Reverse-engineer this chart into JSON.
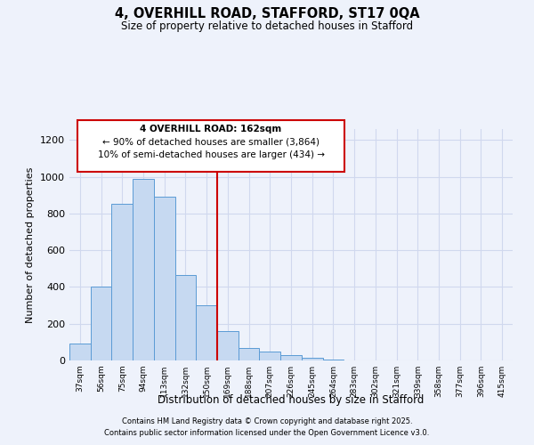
{
  "title": "4, OVERHILL ROAD, STAFFORD, ST17 0QA",
  "subtitle": "Size of property relative to detached houses in Stafford",
  "xlabel": "Distribution of detached houses by size in Stafford",
  "ylabel": "Number of detached properties",
  "bar_labels": [
    "37sqm",
    "56sqm",
    "75sqm",
    "94sqm",
    "113sqm",
    "132sqm",
    "150sqm",
    "169sqm",
    "188sqm",
    "207sqm",
    "226sqm",
    "245sqm",
    "264sqm",
    "283sqm",
    "302sqm",
    "321sqm",
    "339sqm",
    "358sqm",
    "377sqm",
    "396sqm",
    "415sqm"
  ],
  "bar_heights": [
    90,
    400,
    855,
    990,
    890,
    465,
    300,
    160,
    70,
    50,
    30,
    15,
    5,
    2,
    1,
    0,
    0,
    0,
    0,
    0,
    0
  ],
  "bar_color": "#c6d9f1",
  "bar_edge_color": "#5b9bd5",
  "vline_x": 7,
  "vline_color": "#cc0000",
  "ylim": [
    0,
    1260
  ],
  "yticks": [
    0,
    200,
    400,
    600,
    800,
    1000,
    1200
  ],
  "annotation_title": "4 OVERHILL ROAD: 162sqm",
  "annotation_line1": "← 90% of detached houses are smaller (3,864)",
  "annotation_line2": "10% of semi-detached houses are larger (434) →",
  "footnote1": "Contains HM Land Registry data © Crown copyright and database right 2025.",
  "footnote2": "Contains public sector information licensed under the Open Government Licence v3.0.",
  "bg_color": "#eef2fb",
  "grid_color": "#d0d8ee"
}
